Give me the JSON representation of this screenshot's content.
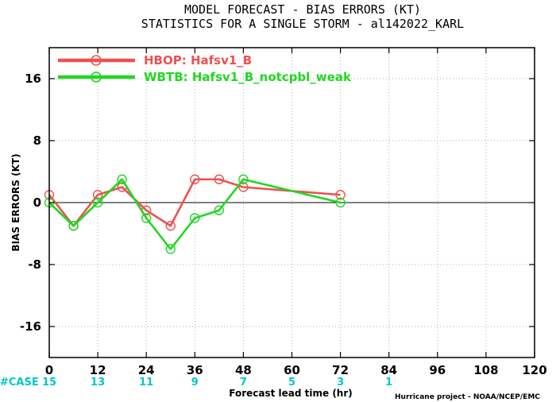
{
  "chart_data": {
    "type": "line",
    "title_line1": "MODEL FORECAST - BIAS ERRORS (KT)",
    "title_line2": "STATISTICS FOR A SINGLE STORM - al142022_KARL",
    "xlabel": "Forecast lead time (hr)",
    "ylabel": "BIAS ERRORS (KT)",
    "xlim": [
      0,
      120
    ],
    "ylim": [
      -20,
      20
    ],
    "x_ticks": [
      0,
      12,
      24,
      36,
      48,
      60,
      72,
      84,
      96,
      108,
      120
    ],
    "y_ticks": [
      16,
      8,
      0,
      -8,
      -16
    ],
    "y_tick_labels": [
      "16",
      "8",
      "0",
      "-8",
      "-16"
    ],
    "grid": true,
    "zero_line": true,
    "legend_position": "top-left",
    "case_label": "#CASE",
    "case_counts": [
      {
        "x": 0,
        "n": "15"
      },
      {
        "x": 12,
        "n": "13"
      },
      {
        "x": 24,
        "n": "11"
      },
      {
        "x": 36,
        "n": "9"
      },
      {
        "x": 48,
        "n": "7"
      },
      {
        "x": 60,
        "n": "5"
      },
      {
        "x": 72,
        "n": "3"
      },
      {
        "x": 84,
        "n": "1"
      }
    ],
    "credit": "Hurricane project - NOAA/NCEP/EMC",
    "series": [
      {
        "name": "HBOP: Hafsv1_B",
        "color": "#f05050",
        "points": [
          {
            "x": 0,
            "y": 1
          },
          {
            "x": 6,
            "y": -3
          },
          {
            "x": 12,
            "y": 1
          },
          {
            "x": 18,
            "y": 2
          },
          {
            "x": 24,
            "y": -1
          },
          {
            "x": 30,
            "y": -3
          },
          {
            "x": 36,
            "y": 3
          },
          {
            "x": 42,
            "y": 3
          },
          {
            "x": 48,
            "y": 2
          },
          {
            "x": 72,
            "y": 1
          }
        ]
      },
      {
        "name": "WBTB: Hafsv1_B_notcpbl_weak",
        "color": "#20d820",
        "points": [
          {
            "x": 0,
            "y": 0
          },
          {
            "x": 6,
            "y": -3
          },
          {
            "x": 12,
            "y": 0
          },
          {
            "x": 18,
            "y": 3
          },
          {
            "x": 24,
            "y": -2
          },
          {
            "x": 30,
            "y": -6
          },
          {
            "x": 36,
            "y": -2
          },
          {
            "x": 42,
            "y": -1
          },
          {
            "x": 48,
            "y": 3
          },
          {
            "x": 72,
            "y": 0
          }
        ]
      }
    ]
  }
}
